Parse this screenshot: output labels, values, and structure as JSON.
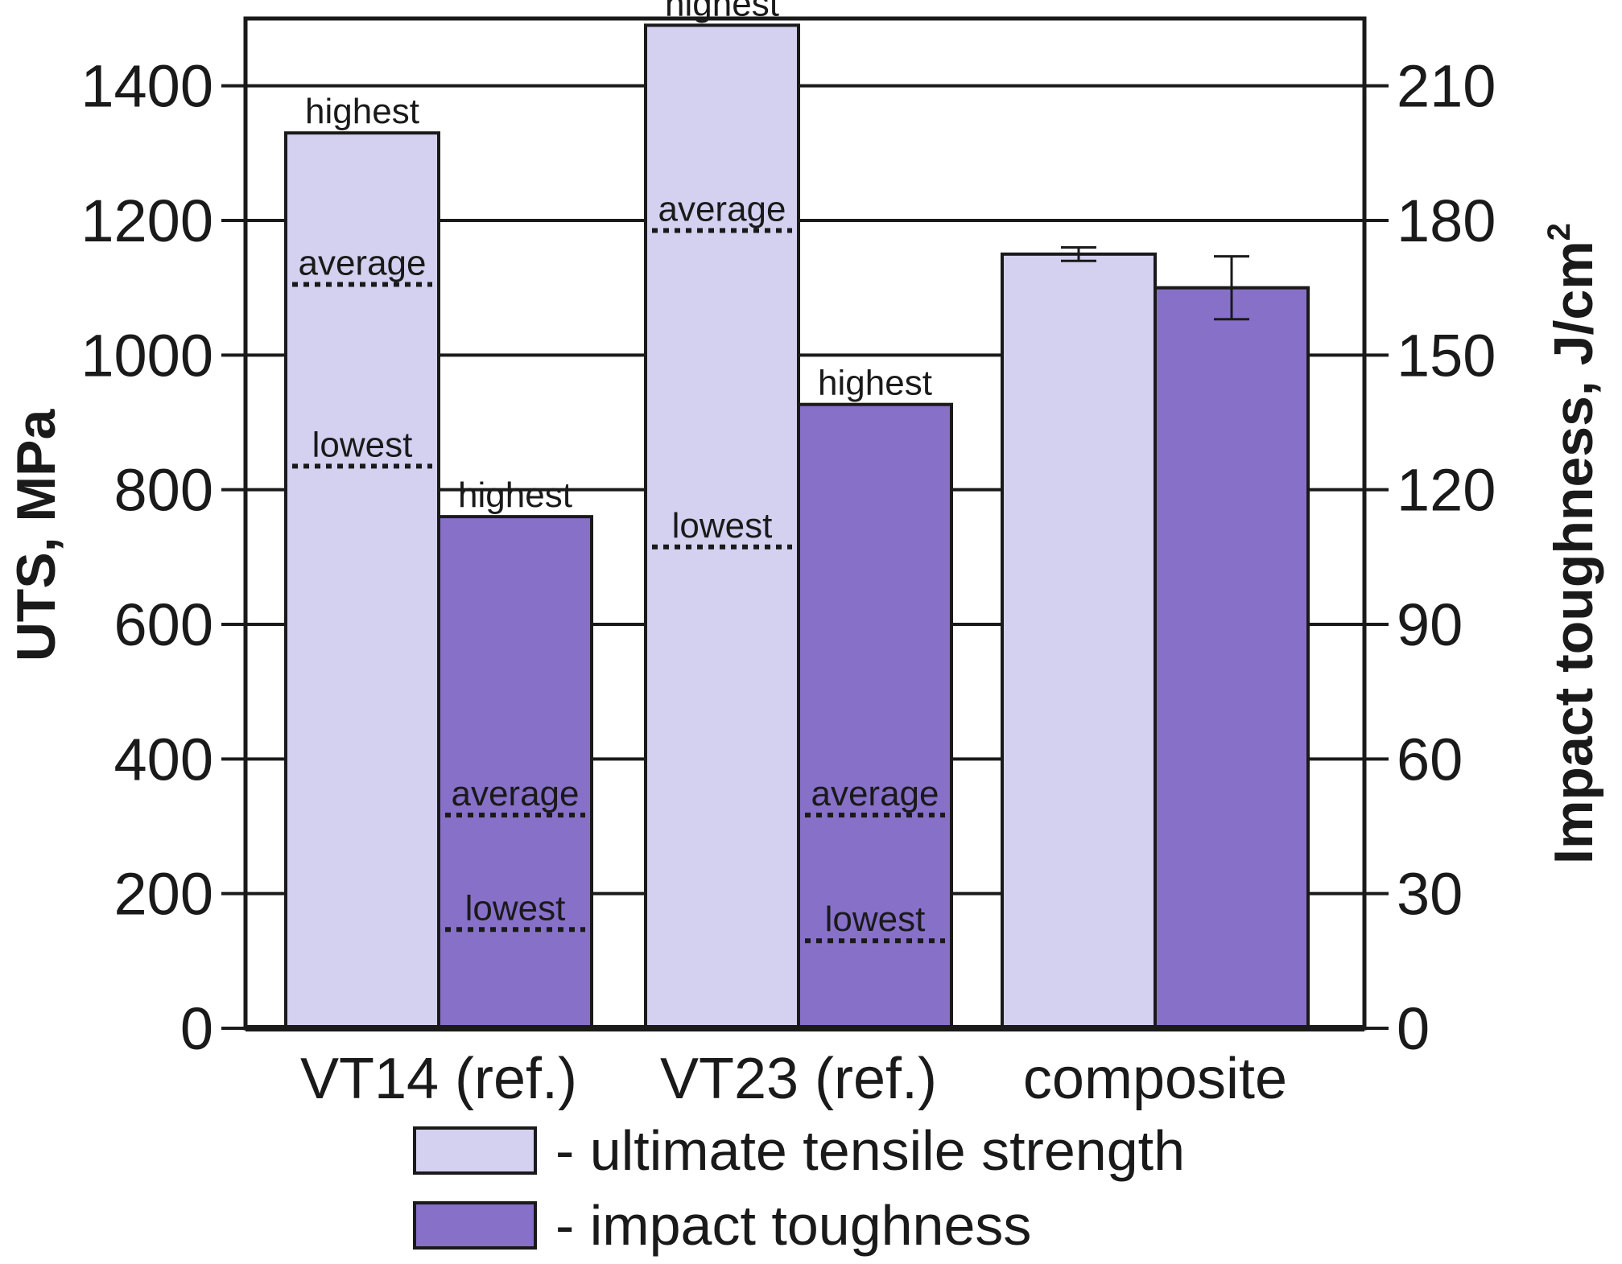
{
  "chart_data": {
    "type": "bar",
    "categories": [
      "VT14 (ref.)",
      "VT23 (ref.)",
      "composite"
    ],
    "left_axis": {
      "label": "UTS, MPa",
      "ylim": [
        0,
        1500
      ],
      "ticks": [
        0,
        200,
        400,
        600,
        800,
        1000,
        1200,
        1400
      ],
      "tick_labels": [
        "0",
        "200",
        "400",
        "600",
        "800",
        "1000",
        "1200",
        "1400"
      ]
    },
    "right_axis": {
      "label": "Impact toughness, J/cm",
      "label_superscript": "2",
      "ylim": [
        0,
        225
      ],
      "ticks": [
        0,
        30,
        60,
        90,
        120,
        150,
        180,
        210
      ],
      "tick_labels": [
        "0",
        "30",
        "60",
        "90",
        "120",
        "150",
        "180",
        "210"
      ]
    },
    "grid": true,
    "series": [
      {
        "name": "ultimate tensile strength",
        "axis": "left",
        "color": "#d4d0f0",
        "values": [
          1330,
          1490,
          1150
        ],
        "error": [
          null,
          null,
          10
        ]
      },
      {
        "name": "impact toughness",
        "axis": "right",
        "color": "#8770c8",
        "values": [
          114,
          139,
          165
        ],
        "error": [
          null,
          null,
          7
        ]
      }
    ],
    "annotations": [
      {
        "category": 0,
        "series": 0,
        "label": "highest",
        "value": 1330,
        "dotted": false
      },
      {
        "category": 0,
        "series": 0,
        "label": "average",
        "value": 1105,
        "dotted": true
      },
      {
        "category": 0,
        "series": 0,
        "label": "lowest",
        "value": 835,
        "dotted": true
      },
      {
        "category": 0,
        "series": 1,
        "label": "highest",
        "value": 114,
        "dotted": false
      },
      {
        "category": 0,
        "series": 1,
        "label": "average",
        "value": 47.5,
        "dotted": true
      },
      {
        "category": 0,
        "series": 1,
        "label": "lowest",
        "value": 22,
        "dotted": true
      },
      {
        "category": 1,
        "series": 0,
        "label": "highest",
        "value": 1490,
        "dotted": false
      },
      {
        "category": 1,
        "series": 0,
        "label": "average",
        "value": 1185,
        "dotted": true
      },
      {
        "category": 1,
        "series": 0,
        "label": "lowest",
        "value": 715,
        "dotted": true
      },
      {
        "category": 1,
        "series": 1,
        "label": "highest",
        "value": 139,
        "dotted": false
      },
      {
        "category": 1,
        "series": 1,
        "label": "average",
        "value": 47.5,
        "dotted": true
      },
      {
        "category": 1,
        "series": 1,
        "label": "lowest",
        "value": 19.5,
        "dotted": true
      }
    ],
    "legend": {
      "position": "bottom-center",
      "entries": [
        "- ultimate tensile strength",
        "- impact toughness"
      ]
    }
  }
}
